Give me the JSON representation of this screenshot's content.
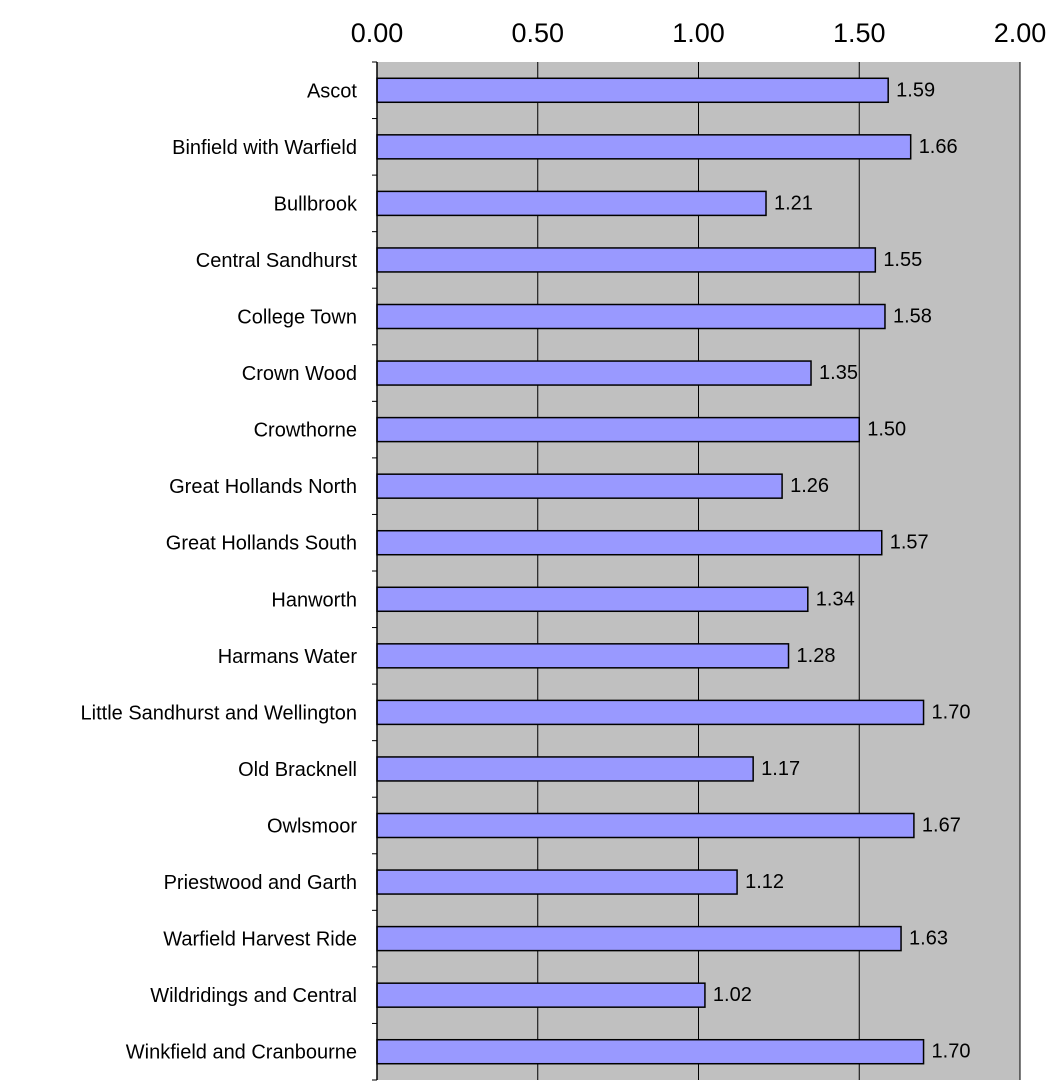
{
  "chart_data": {
    "type": "bar",
    "orientation": "horizontal",
    "title": "",
    "xlabel": "",
    "ylabel": "",
    "xlim": [
      0,
      2
    ],
    "x_ticks": [
      "0.00",
      "0.50",
      "1.00",
      "1.50",
      "2.00"
    ],
    "tick_values": [
      0,
      0.5,
      1,
      1.5,
      2
    ],
    "axis_position": "top",
    "grid": true,
    "legend": "none",
    "plot_background": "#c0c0c0",
    "bar_color": "#9999ff",
    "bar_border_color": "#000000",
    "categories": [
      "Ascot",
      "Binfield with Warfield",
      "Bullbrook",
      "Central Sandhurst",
      "College Town",
      "Crown Wood",
      "Crowthorne",
      "Great Hollands North",
      "Great Hollands South",
      "Hanworth",
      "Harmans Water",
      "Little Sandhurst and Wellington",
      "Old Bracknell",
      "Owlsmoor",
      "Priestwood and Garth",
      "Warfield Harvest Ride",
      "Wildridings and Central",
      "Winkfield and Cranbourne"
    ],
    "values": [
      1.59,
      1.66,
      1.21,
      1.55,
      1.58,
      1.35,
      1.5,
      1.26,
      1.57,
      1.34,
      1.28,
      1.7,
      1.17,
      1.67,
      1.12,
      1.63,
      1.02,
      1.7
    ],
    "value_labels": [
      "1.59",
      "1.66",
      "1.21",
      "1.55",
      "1.58",
      "1.35",
      "1.50",
      "1.26",
      "1.57",
      "1.34",
      "1.28",
      "1.70",
      "1.17",
      "1.67",
      "1.12",
      "1.63",
      "1.02",
      "1.70"
    ]
  }
}
